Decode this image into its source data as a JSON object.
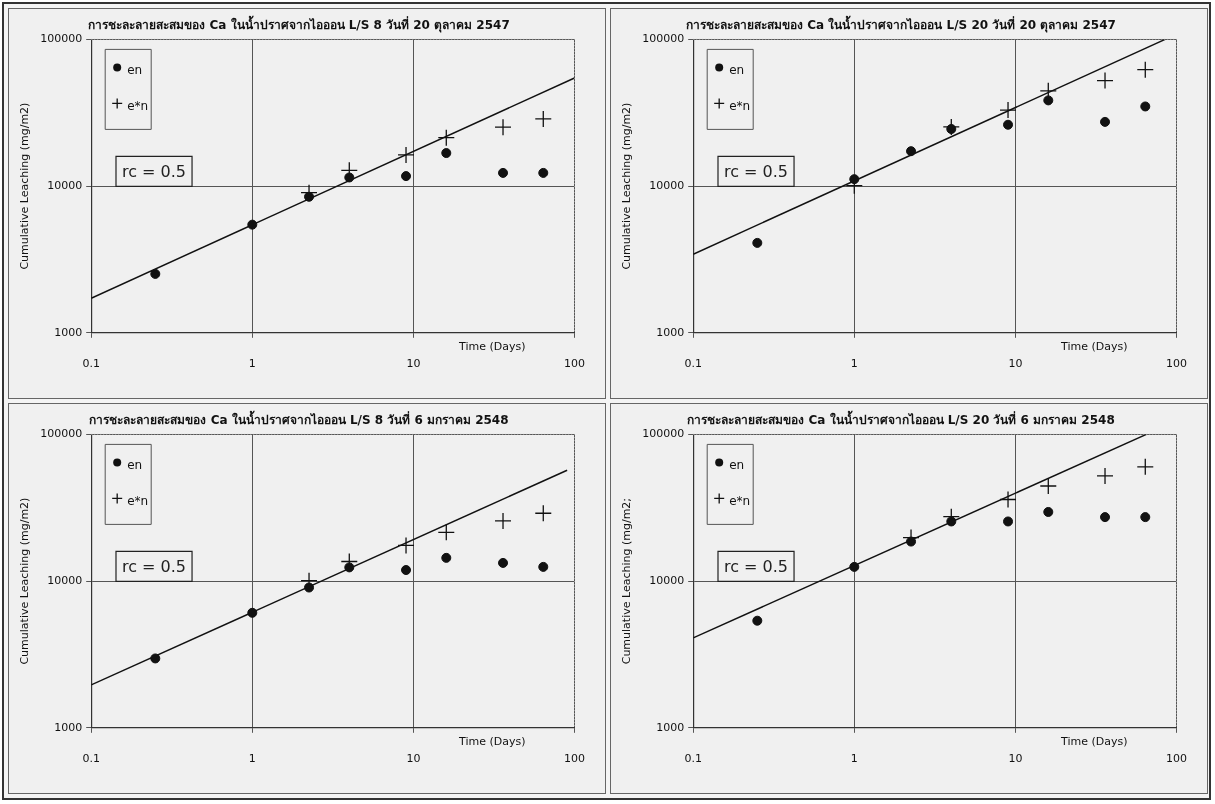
{
  "chart_data": [
    {
      "type": "scatter",
      "title": "การชะละลายสะสมของ Ca ในน้ำปราศจากไอออน L/S 8 วันที่ 20 ตุลาคม 2547",
      "xlabel": "Time (Days)",
      "ylabel": "Cumulative Leaching (mg/m2)",
      "log": "xy",
      "xlim": [
        0.1,
        100
      ],
      "ylim": [
        1000,
        100000
      ],
      "xticks": [
        0.1,
        1,
        10,
        100
      ],
      "yticks": [
        1000,
        10000,
        100000
      ],
      "grid": true,
      "legend": "top left",
      "x": [
        0.25,
        1,
        2.25,
        4,
        9,
        16,
        36,
        64
      ],
      "series": [
        {
          "name": "en",
          "color": "#111111",
          "marker": "circle",
          "values": [
            2520,
            5460,
            8460,
            11450,
            11700,
            16800,
            12300,
            12300
          ]
        },
        {
          "name": "e*n",
          "color": "#111111",
          "marker": "cross",
          "values": [
            null,
            null,
            9020,
            12800,
            16300,
            21400,
            25200,
            28700
          ]
        },
        {
          "type": "line",
          "color": "#111111",
          "marker": "none",
          "x": [
            0.1,
            100
          ],
          "values": [
            1720,
            54600
          ]
        }
      ],
      "annotations": [
        "rc = 0.5"
      ]
    },
    {
      "type": "scatter",
      "title": "การชะละลายสะสมของ Ca ในน้ำปราศจากไอออน L/S 20 วันที่ 20 ตุลาคม 2547",
      "xlabel": "Time (Days)",
      "ylabel": "Cumulative Leaching (mg/m2)",
      "log": "xy",
      "xlim": [
        0.1,
        100
      ],
      "ylim": [
        1000,
        100000
      ],
      "xticks": [
        0.1,
        1,
        10,
        100
      ],
      "yticks": [
        1000,
        10000,
        100000
      ],
      "grid": true,
      "legend": "top left",
      "x": [
        0.25,
        1,
        2.25,
        4,
        9,
        16,
        36,
        64
      ],
      "series": [
        {
          "name": "en",
          "color": "#111111",
          "marker": "circle",
          "values": [
            4100,
            11150,
            17300,
            24500,
            26200,
            38400,
            27400,
            34900
          ]
        },
        {
          "name": "e*n",
          "color": "#111111",
          "marker": "cross",
          "values": [
            null,
            10060,
            null,
            25300,
            33000,
            44600,
            52400,
            62200
          ]
        },
        {
          "type": "line",
          "color": "#111111",
          "marker": "none",
          "x": [
            0.1,
            85
          ],
          "values": [
            3430,
            100000
          ]
        }
      ],
      "annotations": [
        "rc = 0.5"
      ]
    },
    {
      "type": "scatter",
      "title": "การชะละลายสะสมของ Ca ในน้ำปราศจากไอออน L/S 8 วันที่ 6 มกราคม 2548",
      "xlabel": "Time (Days)",
      "ylabel": "Cumulative Leaching (mg/m2)",
      "log": "xy",
      "xlim": [
        0.1,
        100
      ],
      "ylim": [
        1000,
        100000
      ],
      "xticks": [
        0.1,
        1,
        10,
        100
      ],
      "yticks": [
        1000,
        10000,
        100000
      ],
      "grid": true,
      "legend": "top left",
      "x": [
        0.25,
        1,
        2.25,
        4,
        9,
        16,
        36,
        64
      ],
      "series": [
        {
          "name": "en",
          "color": "#111111",
          "marker": "circle",
          "values": [
            2970,
            6080,
            9040,
            12400,
            11900,
            14400,
            13300,
            12500
          ]
        },
        {
          "name": "e*n",
          "color": "#111111",
          "marker": "cross",
          "values": [
            null,
            null,
            10060,
            13600,
            17500,
            21500,
            25700,
            29000
          ]
        },
        {
          "type": "line",
          "color": "#111111",
          "marker": "none",
          "x": [
            0.1,
            90
          ],
          "values": [
            1960,
            57000
          ]
        }
      ],
      "annotations": [
        "rc = 0.5"
      ]
    },
    {
      "type": "scatter",
      "title": "การชะละลายสะสมของ Ca ในน้ำปราศจากไอออน L/S 20 วันที่ 6 มกราคม 2548",
      "xlabel": "Time (Days)",
      "ylabel": "Cumulative Leaching (mg/m2;",
      "log": "xy",
      "xlim": [
        0.1,
        100
      ],
      "ylim": [
        1000,
        100000
      ],
      "xticks": [
        0.1,
        1,
        10,
        100
      ],
      "yticks": [
        1000,
        10000,
        100000
      ],
      "grid": true,
      "legend": "top left",
      "x": [
        0.25,
        1,
        2.25,
        4,
        9,
        16,
        36,
        64
      ],
      "series": [
        {
          "name": "en",
          "color": "#111111",
          "marker": "circle",
          "values": [
            5370,
            12500,
            18600,
            25500,
            25500,
            29600,
            27300,
            27300
          ]
        },
        {
          "name": "e*n",
          "color": "#111111",
          "marker": "cross",
          "values": [
            null,
            null,
            19800,
            27500,
            36000,
            44500,
            52100,
            60100
          ]
        },
        {
          "type": "line",
          "color": "#111111",
          "marker": "none",
          "x": [
            0.1,
            65
          ],
          "values": [
            4100,
            100000
          ]
        }
      ],
      "annotations": [
        "rc = 0.5"
      ]
    }
  ]
}
